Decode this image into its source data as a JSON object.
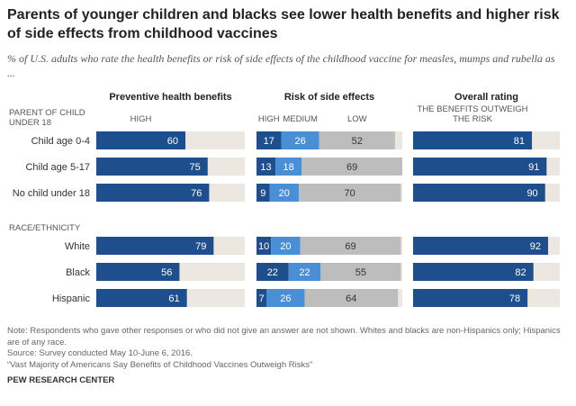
{
  "chart_data": {
    "type": "bar",
    "title": "Parents of younger children and blacks see lower health benefits and higher risk of side effects from childhood vaccines",
    "subtitle": "% of U.S. adults who rate the health benefits or risk of side effects of the childhood vaccine for measles, mumps and rubella as ...",
    "groups": [
      {
        "label": "PARENT OF CHILD\nUNDER 18",
        "categories": [
          "Child age 0-4",
          "Child age 5-17",
          "No child under 18"
        ]
      },
      {
        "label": "RACE/ETHNICITY",
        "categories": [
          "White",
          "Black",
          "Hispanic"
        ]
      }
    ],
    "panels": [
      {
        "title": "Preventive health benefits",
        "xlim": [
          0,
          100
        ],
        "series": [
          {
            "name": "HIGH",
            "color": "#1f4e8c",
            "values": [
              60,
              75,
              76,
              79,
              56,
              61
            ]
          }
        ]
      },
      {
        "title": "Risk of side effects",
        "xlim": [
          0,
          100
        ],
        "series": [
          {
            "name": "HIGH",
            "color": "#1f4e8c",
            "values": [
              17,
              13,
              9,
              10,
              22,
              7
            ]
          },
          {
            "name": "MEDIUM",
            "color": "#4a8fd6",
            "values": [
              26,
              18,
              20,
              20,
              22,
              26
            ]
          },
          {
            "name": "LOW",
            "color": "#bdbdbd",
            "values": [
              52,
              69,
              70,
              69,
              55,
              64
            ]
          }
        ]
      },
      {
        "title": "Overall rating",
        "xlim": [
          0,
          100
        ],
        "series": [
          {
            "name": "THE BENEFITS OUTWEIGH\nTHE RISK",
            "color": "#1f4e8c",
            "values": [
              81,
              91,
              90,
              92,
              82,
              78
            ]
          }
        ]
      }
    ],
    "background_color": "#ece8e1",
    "notes": [
      "Note: Respondents who gave other responses or who did not give an answer are not shown. Whites and blacks are non-Hispanics only; Hispanics are of any race.",
      "Source: Survey conducted May 10-June 6, 2016.",
      "“Vast Majority of Americans Say Benefits of Childhood Vaccines Outweigh Risks”"
    ],
    "source_org": "PEW RESEARCH CENTER"
  }
}
